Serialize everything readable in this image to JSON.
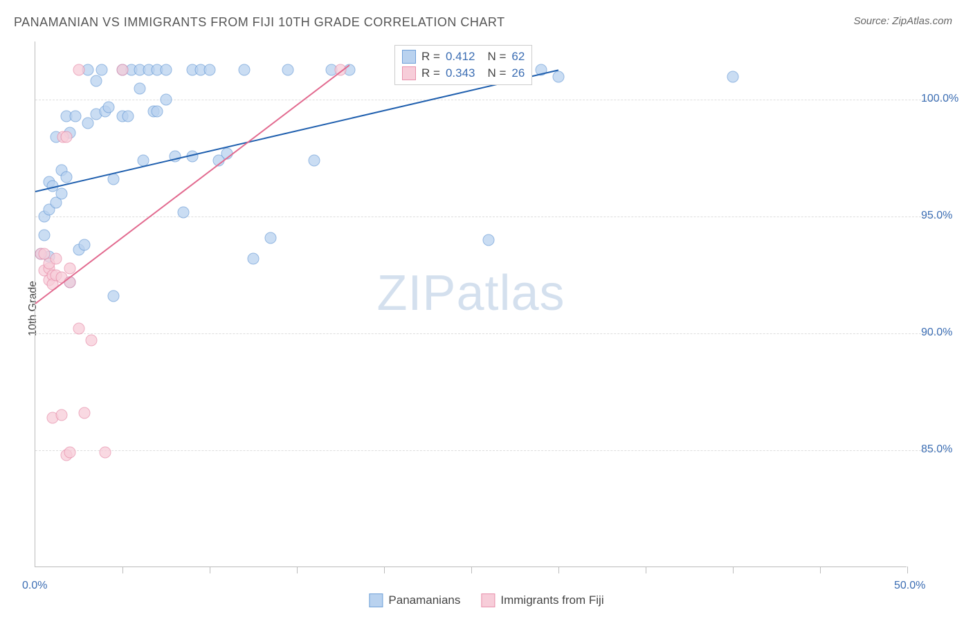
{
  "title": "PANAMANIAN VS IMMIGRANTS FROM FIJI 10TH GRADE CORRELATION CHART",
  "source": "Source: ZipAtlas.com",
  "ylabel": "10th Grade",
  "watermark_bold": "ZIP",
  "watermark_light": "atlas",
  "chart": {
    "type": "scatter",
    "xlim": [
      0,
      50
    ],
    "ylim": [
      80,
      102.5
    ],
    "y_ticks": [
      85.0,
      90.0,
      95.0,
      100.0
    ],
    "y_tick_labels": [
      "85.0%",
      "90.0%",
      "95.0%",
      "100.0%"
    ],
    "x_ticks": [
      0,
      25,
      50
    ],
    "x_tick_labels": [
      "0.0%",
      "",
      "50.0%"
    ],
    "x_minor_ticks": [
      5,
      10,
      15,
      20,
      25,
      30,
      35,
      40,
      45,
      50
    ],
    "background_color": "#ffffff",
    "grid_color": "#dddddd",
    "axis_color": "#bbbbbb",
    "label_color": "#3b6db3",
    "title_color": "#555555",
    "series": [
      {
        "name": "Panamanians",
        "marker_fill": "#b9d2ef",
        "marker_stroke": "#6f9fd8",
        "marker_opacity": 0.75,
        "marker_size": 17,
        "line_color": "#1f5fae",
        "R": "0.412",
        "N": "62",
        "trend": {
          "x1": 0,
          "y1": 96.1,
          "x2": 30,
          "y2": 101.3
        },
        "points": [
          [
            0.3,
            93.4
          ],
          [
            0.5,
            94.2
          ],
          [
            0.5,
            95.0
          ],
          [
            0.8,
            95.3
          ],
          [
            0.8,
            96.5
          ],
          [
            0.8,
            93.3
          ],
          [
            1.0,
            96.3
          ],
          [
            1.2,
            98.4
          ],
          [
            1.2,
            95.6
          ],
          [
            1.5,
            96.0
          ],
          [
            1.5,
            97.0
          ],
          [
            1.8,
            96.7
          ],
          [
            1.8,
            99.3
          ],
          [
            2.0,
            98.6
          ],
          [
            2.0,
            92.2
          ],
          [
            2.3,
            99.3
          ],
          [
            2.5,
            93.6
          ],
          [
            2.8,
            93.8
          ],
          [
            3.0,
            101.3
          ],
          [
            3.0,
            99.0
          ],
          [
            3.5,
            99.4
          ],
          [
            3.5,
            100.8
          ],
          [
            3.8,
            101.3
          ],
          [
            4.0,
            99.5
          ],
          [
            4.2,
            99.7
          ],
          [
            4.5,
            96.6
          ],
          [
            4.5,
            91.6
          ],
          [
            5.0,
            101.3
          ],
          [
            5.0,
            99.3
          ],
          [
            5.3,
            99.3
          ],
          [
            5.5,
            101.3
          ],
          [
            6.0,
            101.3
          ],
          [
            6.0,
            100.5
          ],
          [
            6.2,
            97.4
          ],
          [
            6.5,
            101.3
          ],
          [
            6.8,
            99.5
          ],
          [
            7.0,
            99.5
          ],
          [
            7.0,
            101.3
          ],
          [
            7.5,
            101.3
          ],
          [
            7.5,
            100.0
          ],
          [
            8.0,
            97.6
          ],
          [
            8.5,
            95.2
          ],
          [
            9.0,
            97.6
          ],
          [
            9.0,
            101.3
          ],
          [
            9.5,
            101.3
          ],
          [
            10.0,
            101.3
          ],
          [
            10.5,
            97.4
          ],
          [
            11.0,
            97.7
          ],
          [
            12.0,
            101.3
          ],
          [
            12.5,
            93.2
          ],
          [
            13.5,
            94.1
          ],
          [
            14.5,
            101.3
          ],
          [
            16.0,
            97.4
          ],
          [
            17.0,
            101.3
          ],
          [
            18.0,
            101.3
          ],
          [
            22.0,
            101.3
          ],
          [
            24.0,
            101.3
          ],
          [
            26.0,
            94.0
          ],
          [
            27.5,
            101.3
          ],
          [
            29.0,
            101.3
          ],
          [
            30.0,
            101.0
          ],
          [
            40.0,
            101.0
          ]
        ]
      },
      {
        "name": "Immigrants from Fiji",
        "marker_fill": "#f7cdd9",
        "marker_stroke": "#e890ab",
        "marker_opacity": 0.75,
        "marker_size": 17,
        "line_color": "#e26a8f",
        "R": "0.343",
        "N": "26",
        "trend": {
          "x1": 0,
          "y1": 91.3,
          "x2": 18,
          "y2": 101.5
        },
        "points": [
          [
            0.3,
            93.4
          ],
          [
            0.5,
            93.4
          ],
          [
            0.5,
            92.7
          ],
          [
            0.8,
            92.8
          ],
          [
            0.8,
            93.0
          ],
          [
            0.8,
            92.3
          ],
          [
            1.0,
            92.5
          ],
          [
            1.0,
            92.1
          ],
          [
            1.0,
            86.4
          ],
          [
            1.2,
            93.2
          ],
          [
            1.2,
            92.5
          ],
          [
            1.5,
            92.4
          ],
          [
            1.5,
            86.5
          ],
          [
            1.6,
            98.4
          ],
          [
            1.8,
            98.4
          ],
          [
            1.8,
            84.8
          ],
          [
            2.0,
            92.8
          ],
          [
            2.0,
            92.2
          ],
          [
            2.0,
            84.9
          ],
          [
            2.5,
            90.2
          ],
          [
            2.5,
            101.3
          ],
          [
            2.8,
            86.6
          ],
          [
            3.2,
            89.7
          ],
          [
            4.0,
            84.9
          ],
          [
            5.0,
            101.3
          ],
          [
            17.5,
            101.3
          ]
        ]
      }
    ]
  },
  "stats_box": {
    "rows": [
      {
        "series_idx": 0,
        "R_label": "R =",
        "N_label": "N ="
      },
      {
        "series_idx": 1,
        "R_label": "R =",
        "N_label": "N ="
      }
    ]
  },
  "legend": {
    "items": [
      {
        "series_idx": 0
      },
      {
        "series_idx": 1
      }
    ]
  }
}
